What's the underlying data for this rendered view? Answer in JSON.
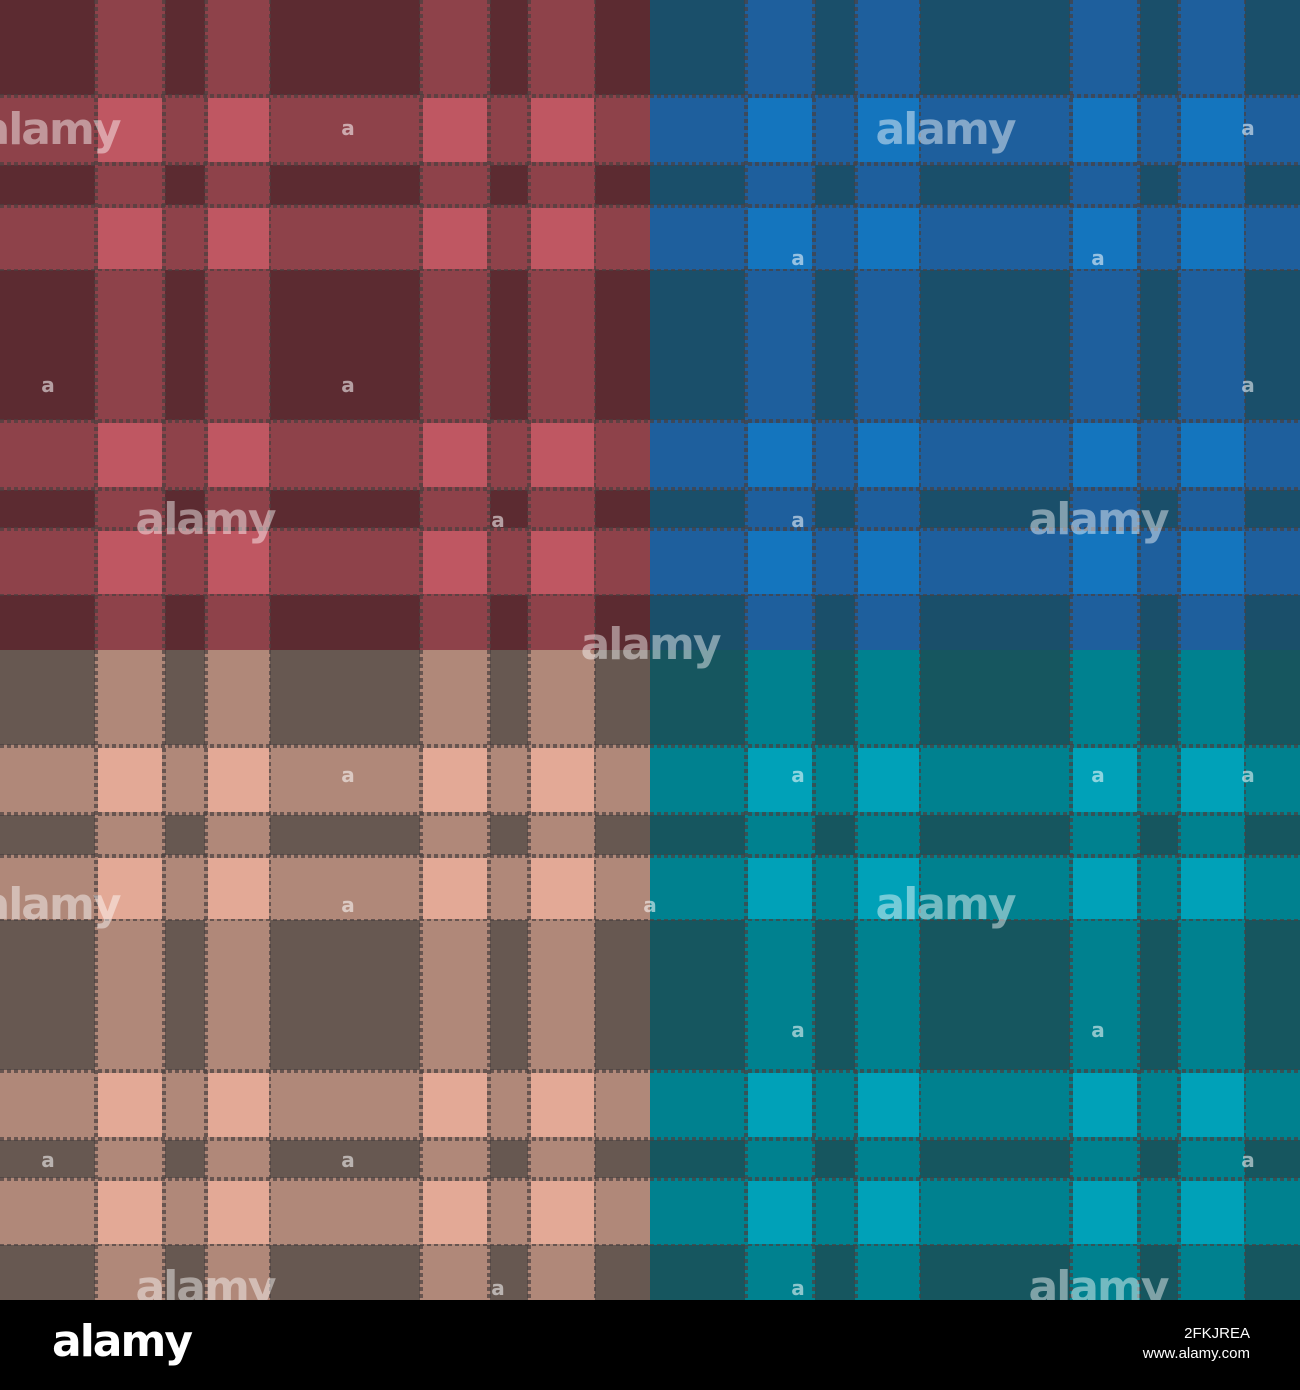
{
  "image": {
    "description": "Four seamless plaid tartan patterns in a 2x2 grid",
    "quadrants": [
      {
        "name": "red",
        "base": "#8E424A",
        "dark": "#5C2B31",
        "light": "#BF5762"
      },
      {
        "name": "blue",
        "base": "#1E5F9D",
        "dark": "#1A4F6A",
        "light": "#1475BE"
      },
      {
        "name": "tan",
        "base": "#B08879",
        "dark": "#675851",
        "light": "#E3A996"
      },
      {
        "name": "teal",
        "base": "#00818F",
        "dark": "#16565F",
        "light": "#00A1B8"
      }
    ],
    "stitch_color": "#4A4040"
  },
  "watermark": {
    "text": "alamy",
    "small": "a"
  },
  "footer": {
    "logo": "alamy",
    "image_id": "2FKJREA",
    "site": "www.alamy.com"
  }
}
